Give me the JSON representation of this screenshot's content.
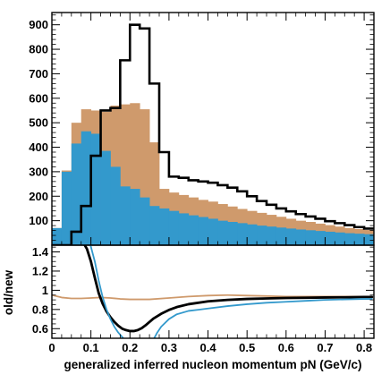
{
  "chart_data": [
    {
      "type": "histogram",
      "xlim": [
        0,
        0.825
      ],
      "ylim": [
        0,
        950
      ],
      "bin_width": 0.025,
      "x_ticks": [
        0,
        0.1,
        0.2,
        0.3,
        0.4,
        0.5,
        0.6,
        0.7,
        0.8
      ],
      "x_tick_labels": [
        "0",
        "0.1",
        "0.2",
        "0.3",
        "0.4",
        "0.5",
        "0.6",
        "0.7",
        "0.8"
      ],
      "y_ticks": [
        100,
        200,
        300,
        400,
        500,
        600,
        700,
        800,
        900
      ],
      "y_tick_labels": [
        "100",
        "200",
        "300",
        "400",
        "500",
        "600",
        "700",
        "800",
        "900"
      ],
      "series": [
        {
          "color": "#cf9a6c",
          "style": "filled",
          "values": [
            70,
            305,
            500,
            555,
            550,
            545,
            570,
            575,
            580,
            555,
            420,
            230,
            215,
            205,
            195,
            185,
            178,
            168,
            158,
            148,
            140,
            132,
            124,
            116,
            108,
            100,
            95,
            88,
            82,
            76,
            70,
            66,
            62
          ]
        },
        {
          "color": "#3399cc",
          "style": "filled",
          "values": [
            70,
            300,
            415,
            465,
            455,
            385,
            320,
            240,
            230,
            195,
            160,
            150,
            140,
            130,
            122,
            115,
            108,
            100,
            95,
            90,
            85,
            80,
            76,
            72,
            68,
            64,
            61,
            58,
            55,
            52,
            49,
            47,
            45
          ]
        },
        {
          "color": "#000000",
          "style": "step-outline",
          "values": [
            0,
            0,
            55,
            160,
            365,
            550,
            560,
            755,
            900,
            885,
            660,
            380,
            280,
            275,
            265,
            260,
            255,
            245,
            235,
            220,
            200,
            180,
            165,
            150,
            138,
            127,
            117,
            108,
            98,
            90,
            82,
            74,
            68
          ]
        }
      ]
    },
    {
      "type": "line",
      "ylabel": "old/new",
      "xlabel": "generalized inferred nucleon momentum pN (GeV/c)",
      "xlim": [
        0,
        0.825
      ],
      "ylim": [
        0.5,
        1.47
      ],
      "x_ticks": [
        0,
        0.1,
        0.2,
        0.3,
        0.4,
        0.5,
        0.6,
        0.7,
        0.8
      ],
      "x_tick_labels": [
        "0",
        "0.1",
        "0.2",
        "0.3",
        "0.4",
        "0.5",
        "0.6",
        "0.7",
        "0.8"
      ],
      "y_ticks": [
        0.6,
        0.8,
        1.0,
        1.2,
        1.4
      ],
      "y_tick_labels": [
        "0.6",
        "0.8",
        "1",
        "1.2",
        "1.4"
      ],
      "series": [
        {
          "color": "#cf9a6c",
          "x": [
            0,
            0.025,
            0.05,
            0.075,
            0.1,
            0.125,
            0.15,
            0.175,
            0.2,
            0.25,
            0.3,
            0.35,
            0.4,
            0.45,
            0.5,
            0.55,
            0.6,
            0.65,
            0.7,
            0.75,
            0.8,
            0.82
          ],
          "y": [
            0.95,
            0.925,
            0.915,
            0.915,
            0.92,
            0.925,
            0.92,
            0.91,
            0.905,
            0.905,
            0.92,
            0.935,
            0.945,
            0.95,
            0.945,
            0.94,
            0.935,
            0.935,
            0.935,
            0.935,
            0.935,
            0.935
          ]
        },
        {
          "color": "#000000",
          "x": [
            0.08,
            0.09,
            0.1,
            0.11,
            0.12,
            0.13,
            0.14,
            0.15,
            0.16,
            0.17,
            0.18,
            0.19,
            0.2,
            0.21,
            0.22,
            0.23,
            0.24,
            0.25,
            0.26,
            0.28,
            0.3,
            0.32,
            0.35,
            0.4,
            0.45,
            0.5,
            0.55,
            0.6,
            0.65,
            0.7,
            0.75,
            0.8,
            0.82
          ],
          "y": [
            1.5,
            1.43,
            1.3,
            1.13,
            0.97,
            0.86,
            0.78,
            0.72,
            0.67,
            0.63,
            0.6,
            0.585,
            0.575,
            0.575,
            0.585,
            0.605,
            0.635,
            0.67,
            0.705,
            0.755,
            0.795,
            0.825,
            0.855,
            0.885,
            0.9,
            0.91,
            0.915,
            0.92,
            0.922,
            0.925,
            0.927,
            0.93,
            0.93
          ]
        },
        {
          "color": "#3399cc",
          "x": [
            0.097,
            0.11,
            0.12,
            0.13,
            0.14,
            0.15,
            0.16,
            0.17,
            0.183
          ],
          "y": [
            1.5,
            1.3,
            1.1,
            0.93,
            0.8,
            0.7,
            0.62,
            0.56,
            0.5
          ]
        },
        {
          "color": "#3399cc",
          "x": [
            0.262,
            0.27,
            0.28,
            0.3,
            0.32,
            0.35,
            0.38,
            0.4,
            0.45,
            0.5,
            0.55,
            0.6,
            0.65,
            0.7,
            0.75,
            0.8,
            0.82
          ],
          "y": [
            0.5,
            0.56,
            0.62,
            0.7,
            0.75,
            0.785,
            0.8,
            0.81,
            0.835,
            0.855,
            0.87,
            0.88,
            0.89,
            0.9,
            0.905,
            0.91,
            0.91
          ]
        }
      ]
    }
  ]
}
